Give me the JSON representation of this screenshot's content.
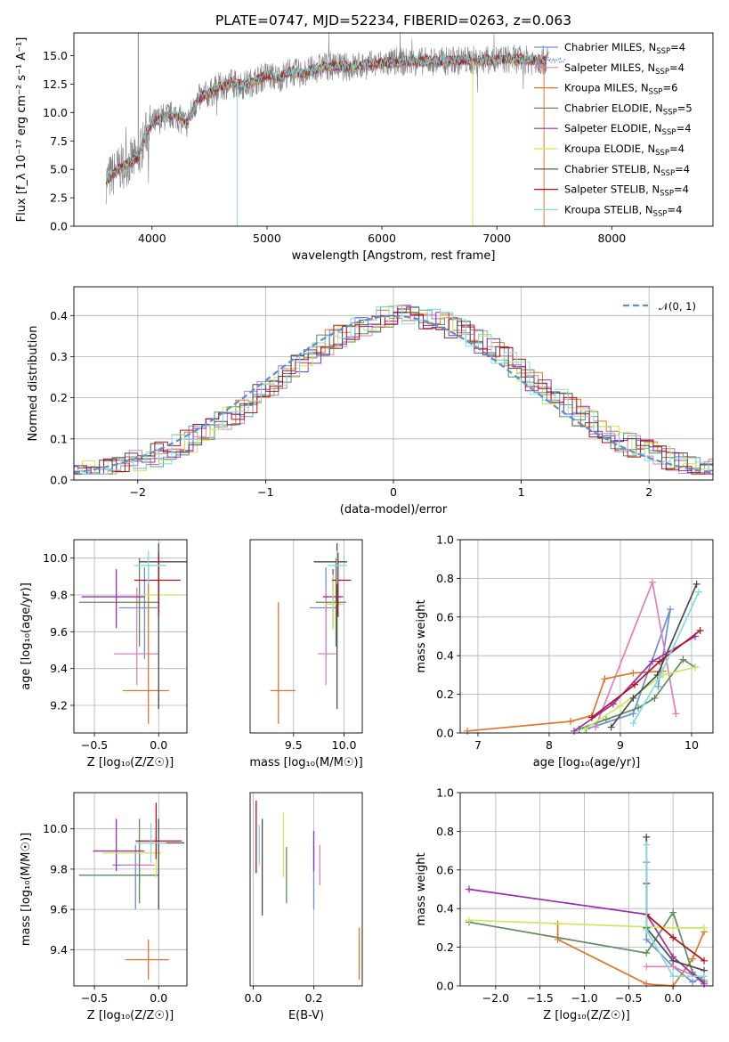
{
  "figure_title": "PLATE=0747, MJD=52234, FIBERID=0263, z=0.063",
  "colors": {
    "Chabrier MILES": "#6b8fd6",
    "Salpeter MILES": "#e07fb9",
    "Kroupa MILES": "#e0762a",
    "Chabrier ELODIE": "#5e8c5e",
    "Salpeter ELODIE": "#9a2cb5",
    "Kroupa ELODIE": "#cce85a",
    "Chabrier STELIB": "#4a4a4a",
    "Salpeter STELIB": "#b5111a",
    "Kroupa STELIB": "#7fdde0",
    "data": "#808080",
    "normal": "#5b8fd0"
  },
  "chart_data": [
    {
      "id": "spectrum",
      "type": "line",
      "title": "PLATE=0747, MJD=52234, FIBERID=0263, z=0.063",
      "xlabel": "wavelength [Angstrom, rest frame]",
      "ylabel": "Flux [f_λ 10⁻¹⁷ erg cm⁻² s⁻¹ A⁻¹]",
      "xlim": [
        3320,
        8880
      ],
      "ylim": [
        0,
        17
      ],
      "xticks": [
        "4000",
        "5000",
        "6000",
        "7000",
        "8000"
      ],
      "yticks": [
        "0.0",
        "2.5",
        "5.0",
        "7.5",
        "10.0",
        "12.5",
        "15.0"
      ],
      "legend": [
        {
          "name": "Chabrier MILES",
          "label": "Chabrier MILES, N",
          "sub": "SSP",
          "tail": "=4"
        },
        {
          "name": "Salpeter MILES",
          "label": "Salpeter MILES, N",
          "sub": "SSP",
          "tail": "=4"
        },
        {
          "name": "Kroupa MILES",
          "label": "Kroupa MILES, N",
          "sub": "SSP",
          "tail": "=6"
        },
        {
          "name": "Chabrier ELODIE",
          "label": "Chabrier ELODIE, N",
          "sub": "SSP",
          "tail": "=5"
        },
        {
          "name": "Salpeter ELODIE",
          "label": "Salpeter ELODIE, N",
          "sub": "SSP",
          "tail": "=4"
        },
        {
          "name": "Kroupa ELODIE",
          "label": "Kroupa ELODIE, N",
          "sub": "SSP",
          "tail": "=4"
        },
        {
          "name": "Chabrier STELIB",
          "label": "Chabrier STELIB, N",
          "sub": "SSP",
          "tail": "=4"
        },
        {
          "name": "Salpeter STELIB",
          "label": "Salpeter STELIB, N",
          "sub": "SSP",
          "tail": "=4"
        },
        {
          "name": "Kroupa STELIB",
          "label": "Kroupa STELIB, N",
          "sub": "SSP",
          "tail": "=4"
        }
      ],
      "continuum": {
        "x": [
          3600,
          3700,
          3800,
          3880,
          3950,
          4000,
          4100,
          4200,
          4300,
          4400,
          4500,
          4600,
          4700,
          4800,
          4900,
          5000,
          5100,
          5200,
          5300,
          5500,
          5700,
          5900,
          6100,
          6300,
          6500,
          6700,
          6900,
          7100,
          7300,
          7500,
          7700,
          7900,
          8100,
          8300,
          8500,
          8700,
          8840
        ],
        "y": [
          4.0,
          5.0,
          5.6,
          6.0,
          8.2,
          9.0,
          9.6,
          9.8,
          9.0,
          11.2,
          11.7,
          12.3,
          12.6,
          12.4,
          12.8,
          13.3,
          13.0,
          13.6,
          13.4,
          14.1,
          14.0,
          14.2,
          14.4,
          14.5,
          14.5,
          14.6,
          14.6,
          14.7,
          14.6,
          14.6,
          14.7,
          14.6,
          14.6,
          14.7,
          14.6,
          14.6,
          14.6
        ]
      },
      "spikes": [
        {
          "x": 3880,
          "y": 17
        },
        {
          "x": 4740,
          "y": 0
        },
        {
          "x": 6790,
          "y": 0
        },
        {
          "x": 7410,
          "y": 0
        }
      ]
    },
    {
      "id": "residuals",
      "type": "bar",
      "xlabel": "(data-model)/error",
      "ylabel": "Normed distribution",
      "xlim": [
        -2.5,
        2.5
      ],
      "ylim": [
        0,
        0.47
      ],
      "xticks": [
        "−2",
        "−1",
        "0",
        "1",
        "2"
      ],
      "yticks": [
        "0.0",
        "0.1",
        "0.2",
        "0.3",
        "0.4"
      ],
      "legend": [
        "𝒩(0, 1)"
      ],
      "note": "nine step histograms of normalized residuals, one per model, plus a standard normal curve"
    },
    {
      "id": "age-vs-z",
      "type": "scatter",
      "xlabel": "Z [log₁₀(Z/Z☉)]",
      "ylabel": "age  [log₁₀(age/yr)]",
      "xlim": [
        -0.66,
        0.22
      ],
      "ylim": [
        9.05,
        10.1
      ],
      "xticks": [
        "−0.5",
        "0.0"
      ],
      "yticks": [
        "9.2",
        "9.4",
        "9.6",
        "9.8",
        "10.0"
      ],
      "points": [
        {
          "model": "Chabrier MILES",
          "x": -0.11,
          "xerr": [
            0.2,
            0.1
          ],
          "y": 9.73,
          "yerr": [
            0.28,
            0.22
          ]
        },
        {
          "model": "Salpeter MILES",
          "x": -0.17,
          "xerr": [
            0.18,
            0.17
          ],
          "y": 9.48,
          "yerr": [
            0.17,
            0.36
          ]
        },
        {
          "model": "Kroupa MILES",
          "x": -0.08,
          "xerr": [
            0.2,
            0.16
          ],
          "y": 9.28,
          "yerr": [
            0.18,
            0.68
          ]
        },
        {
          "model": "Chabrier ELODIE",
          "x": -0.15,
          "xerr": [
            0.47,
            0.15
          ],
          "y": 9.76,
          "yerr": [
            0.24,
            0.24
          ]
        },
        {
          "model": "Salpeter ELODIE",
          "x": -0.33,
          "xerr": [
            0.27,
            0.22
          ],
          "y": 9.79,
          "yerr": [
            0.17,
            0.15
          ]
        },
        {
          "model": "Kroupa ELODIE",
          "x": 0.0,
          "xerr": [
            0.15,
            0.18
          ],
          "y": 9.8,
          "yerr": [
            0.14,
            0.16
          ]
        },
        {
          "model": "Chabrier STELIB",
          "x": 0.0,
          "xerr": [
            0.15,
            0.22
          ],
          "y": 9.98,
          "yerr": [
            0.8,
            0.1
          ]
        },
        {
          "model": "Salpeter STELIB",
          "x": 0.0,
          "xerr": [
            0.19,
            0.17
          ],
          "y": 9.88,
          "yerr": [
            0.2,
            0.15
          ]
        },
        {
          "model": "Kroupa STELIB",
          "x": -0.08,
          "xerr": [
            0.11,
            0.14
          ],
          "y": 9.96,
          "yerr": [
            0.1,
            0.08
          ]
        }
      ]
    },
    {
      "id": "age-vs-mass",
      "type": "scatter",
      "xlabel": "mass [log₁₀(M/M☉)]",
      "ylabel": "",
      "xlim": [
        9.07,
        10.18
      ],
      "ylim": [
        9.05,
        10.1
      ],
      "xticks": [
        "9.5",
        "10.0"
      ],
      "points": [
        {
          "model": "Chabrier MILES",
          "x": 9.82,
          "xerr": [
            0.16,
            0.1
          ],
          "y": 9.73,
          "yerr": [
            0.28,
            0.22
          ]
        },
        {
          "model": "Salpeter MILES",
          "x": 9.82,
          "xerr": [
            0.08,
            0.1
          ],
          "y": 9.48,
          "yerr": [
            0.17,
            0.36
          ]
        },
        {
          "model": "Kroupa MILES",
          "x": 9.35,
          "xerr": [
            0.08,
            0.17
          ],
          "y": 9.28,
          "yerr": [
            0.18,
            0.48
          ]
        },
        {
          "model": "Chabrier ELODIE",
          "x": 9.92,
          "xerr": [
            0.2,
            0.1
          ],
          "y": 9.76,
          "yerr": [
            0.24,
            0.24
          ]
        },
        {
          "model": "Salpeter ELODIE",
          "x": 9.89,
          "xerr": [
            0.1,
            0.1
          ],
          "y": 9.79,
          "yerr": [
            0.17,
            0.15
          ]
        },
        {
          "model": "Kroupa ELODIE",
          "x": 9.89,
          "xerr": [
            0.08,
            0.1
          ],
          "y": 9.75,
          "yerr": [
            0.14,
            0.16
          ]
        },
        {
          "model": "Chabrier STELIB",
          "x": 9.93,
          "xerr": [
            0.23,
            0.1
          ],
          "y": 9.98,
          "yerr": [
            0.8,
            0.1
          ]
        },
        {
          "model": "Salpeter STELIB",
          "x": 9.94,
          "xerr": [
            0.06,
            0.13
          ],
          "y": 9.88,
          "yerr": [
            0.2,
            0.15
          ]
        },
        {
          "model": "Kroupa STELIB",
          "x": 9.93,
          "xerr": [
            0.09,
            0.1
          ],
          "y": 9.96,
          "yerr": [
            0.1,
            0.08
          ]
        }
      ]
    },
    {
      "id": "mass-weight-vs-age",
      "type": "line",
      "xlabel": "age  [log₁₀(age/yr)]",
      "ylabel": "mass weight",
      "xlim": [
        6.75,
        10.3
      ],
      "ylim": [
        0,
        1
      ],
      "xticks": [
        "7",
        "8",
        "9",
        "10"
      ],
      "yticks": [
        "0.0",
        "0.2",
        "0.4",
        "0.6",
        "0.8",
        "1.0"
      ],
      "series": [
        {
          "name": "Chabrier MILES",
          "x": [
            8.52,
            9.18,
            9.7,
            9.53
          ],
          "y": [
            0.02,
            0.1,
            0.64,
            0.24
          ]
        },
        {
          "name": "Salpeter MILES",
          "x": [
            8.65,
            9.45,
            9.78
          ],
          "y": [
            0.03,
            0.78,
            0.1
          ]
        },
        {
          "name": "Kroupa MILES",
          "x": [
            6.85,
            8.3,
            8.6,
            8.78,
            9.18,
            9.6
          ],
          "y": [
            0.01,
            0.06,
            0.09,
            0.28,
            0.31,
            0.32
          ]
        },
        {
          "name": "Chabrier ELODIE",
          "x": [
            8.42,
            8.8,
            9.25,
            9.48,
            9.88,
            10.05
          ],
          "y": [
            0.02,
            0.07,
            0.13,
            0.18,
            0.38,
            0.34
          ]
        },
        {
          "name": "Salpeter ELODIE",
          "x": [
            8.35,
            8.9,
            9.45,
            10.05
          ],
          "y": [
            0.01,
            0.15,
            0.37,
            0.5
          ]
        },
        {
          "name": "Kroupa ELODIE",
          "x": [
            8.5,
            9.0,
            9.6,
            10.05
          ],
          "y": [
            0.02,
            0.14,
            0.3,
            0.34
          ]
        },
        {
          "name": "Chabrier STELIB",
          "x": [
            8.87,
            9.18,
            9.52,
            10.07
          ],
          "y": [
            0.03,
            0.18,
            0.3,
            0.77
          ]
        },
        {
          "name": "Salpeter STELIB",
          "x": [
            8.6,
            9.2,
            9.55,
            10.12
          ],
          "y": [
            0.08,
            0.25,
            0.37,
            0.53
          ]
        },
        {
          "name": "Kroupa STELIB",
          "x": [
            9.18,
            9.55,
            10.1
          ],
          "y": [
            0.05,
            0.29,
            0.73
          ]
        }
      ]
    },
    {
      "id": "mass-vs-z",
      "type": "scatter",
      "xlabel": "Z [log₁₀(Z/Z☉)]",
      "ylabel": "mass [log₁₀(M/M☉)]",
      "xlim": [
        -0.66,
        0.22
      ],
      "ylim": [
        9.22,
        10.18
      ],
      "xticks": [
        "−0.5",
        "0.0"
      ],
      "yticks": [
        "9.4",
        "9.6",
        "9.8",
        "10.0"
      ],
      "points": [
        {
          "model": "Chabrier MILES",
          "x": -0.18,
          "xerr": [
            0.18,
            0.12
          ],
          "y": 9.82,
          "yerr": [
            0.22,
            0.1
          ]
        },
        {
          "model": "Salpeter MILES",
          "x": -0.15,
          "xerr": [
            0.12,
            0.12
          ],
          "y": 9.82,
          "yerr": [
            0.1,
            0.1
          ]
        },
        {
          "model": "Kroupa MILES",
          "x": -0.08,
          "xerr": [
            0.18,
            0.16
          ],
          "y": 9.35,
          "yerr": [
            0.1,
            0.1
          ]
        },
        {
          "model": "Chabrier ELODIE",
          "x": -0.15,
          "xerr": [
            0.47,
            0.15
          ],
          "y": 9.77,
          "yerr": [
            0.14,
            0.28
          ]
        },
        {
          "model": "Salpeter ELODIE",
          "x": -0.33,
          "xerr": [
            0.18,
            0.22
          ],
          "y": 9.89,
          "yerr": [
            0.1,
            0.16
          ]
        },
        {
          "model": "Kroupa ELODIE",
          "x": -0.02,
          "xerr": [
            0.42,
            0.04
          ],
          "y": 9.88,
          "yerr": [
            0.12,
            0.08
          ]
        },
        {
          "model": "Chabrier STELIB",
          "x": 0.0,
          "xerr": [
            0.15,
            0.2
          ],
          "y": 9.93,
          "yerr": [
            0.33,
            0.12
          ]
        },
        {
          "model": "Salpeter STELIB",
          "x": -0.02,
          "xerr": [
            0.16,
            0.2
          ],
          "y": 9.94,
          "yerr": [
            0.09,
            0.19
          ]
        },
        {
          "model": "Kroupa STELIB",
          "x": -0.06,
          "xerr": [
            0.12,
            0.12
          ],
          "y": 9.93,
          "yerr": [
            0.1,
            0.1
          ]
        }
      ]
    },
    {
      "id": "mass-vs-ebv",
      "type": "scatter",
      "xlabel": "E(B-V)",
      "ylabel": "",
      "xlim": [
        -0.01,
        0.36
      ],
      "ylim": [
        9.22,
        10.18
      ],
      "xticks": [
        "0.0",
        "0.2"
      ],
      "points": [
        {
          "model": "Chabrier MILES",
          "x": 0.2,
          "xerr": [
            0,
            0
          ],
          "y": 9.82,
          "yerr": [
            0.22,
            0.1
          ]
        },
        {
          "model": "Salpeter MILES",
          "x": 0.22,
          "xerr": [
            0,
            0
          ],
          "y": 9.82,
          "yerr": [
            0.1,
            0.1
          ]
        },
        {
          "model": "Kroupa MILES",
          "x": 0.35,
          "xerr": [
            0,
            0
          ],
          "y": 9.38,
          "yerr": [
            0.13,
            0.13
          ]
        },
        {
          "model": "Chabrier ELODIE",
          "x": 0.11,
          "xerr": [
            0,
            0
          ],
          "y": 9.77,
          "yerr": [
            0.14,
            0.14
          ]
        },
        {
          "model": "Salpeter ELODIE",
          "x": 0.2,
          "xerr": [
            0,
            0
          ],
          "y": 9.89,
          "yerr": [
            0.1,
            0.1
          ]
        },
        {
          "model": "Kroupa ELODIE",
          "x": 0.1,
          "xerr": [
            0,
            0
          ],
          "y": 9.88,
          "yerr": [
            0.12,
            0.2
          ]
        },
        {
          "model": "Chabrier STELIB",
          "x": 0.03,
          "xerr": [
            0,
            0
          ],
          "y": 9.83,
          "yerr": [
            0.26,
            0.22
          ]
        },
        {
          "model": "Salpeter STELIB",
          "x": 0.01,
          "xerr": [
            0,
            0
          ],
          "y": 9.94,
          "yerr": [
            0.16,
            0.2
          ]
        },
        {
          "model": "Kroupa STELIB",
          "x": 0.02,
          "xerr": [
            0,
            0
          ],
          "y": 9.9,
          "yerr": [
            0.08,
            0.12
          ]
        }
      ]
    },
    {
      "id": "mass-weight-vs-z",
      "type": "line",
      "xlabel": "Z [log₁₀(Z/Z☉)]",
      "ylabel": "mass weight",
      "xlim": [
        -2.4,
        0.45
      ],
      "ylim": [
        0,
        1
      ],
      "xticks": [
        "−2.0",
        "−1.5",
        "−1.0",
        "−0.5",
        "0.0"
      ],
      "yticks": [
        "0.0",
        "0.2",
        "0.4",
        "0.6",
        "0.8",
        "1.0"
      ],
      "series": [
        {
          "name": "Chabrier MILES",
          "x": [
            -0.3,
            -0.3,
            0.0,
            0.22,
            0.35
          ],
          "y": [
            0.64,
            0.24,
            0.1,
            0.02,
            0.05
          ]
        },
        {
          "name": "Salpeter MILES",
          "x": [
            -0.3,
            0.0,
            0.35
          ],
          "y": [
            0.1,
            0.1,
            0.03
          ]
        },
        {
          "name": "Kroupa MILES",
          "x": [
            -1.3,
            -1.3,
            -0.3,
            0.0,
            0.22,
            0.35
          ],
          "y": [
            0.32,
            0.24,
            0.01,
            0.0,
            0.14,
            0.28
          ]
        },
        {
          "name": "Chabrier ELODIE",
          "x": [
            -2.3,
            -0.3,
            0.0,
            0.22,
            0.35
          ],
          "y": [
            0.33,
            0.17,
            0.38,
            0.07,
            0.02
          ]
        },
        {
          "name": "Salpeter ELODIE",
          "x": [
            -2.3,
            -0.3,
            0.0,
            0.35
          ],
          "y": [
            0.5,
            0.37,
            0.15,
            0.01
          ]
        },
        {
          "name": "Kroupa ELODIE",
          "x": [
            -2.3,
            0.0,
            0.35
          ],
          "y": [
            0.34,
            0.3,
            0.3
          ]
        },
        {
          "name": "Chabrier STELIB",
          "x": [
            -0.3,
            -0.3,
            0.0,
            0.35
          ],
          "y": [
            0.77,
            0.3,
            0.13,
            0.08
          ]
        },
        {
          "name": "Salpeter STELIB",
          "x": [
            -0.3,
            -0.3,
            0.0,
            0.35
          ],
          "y": [
            0.53,
            0.37,
            0.25,
            0.13
          ]
        },
        {
          "name": "Kroupa STELIB",
          "x": [
            -0.3,
            -0.3,
            0.0,
            0.35
          ],
          "y": [
            0.73,
            0.29,
            0.05,
            0.05
          ]
        }
      ]
    }
  ]
}
